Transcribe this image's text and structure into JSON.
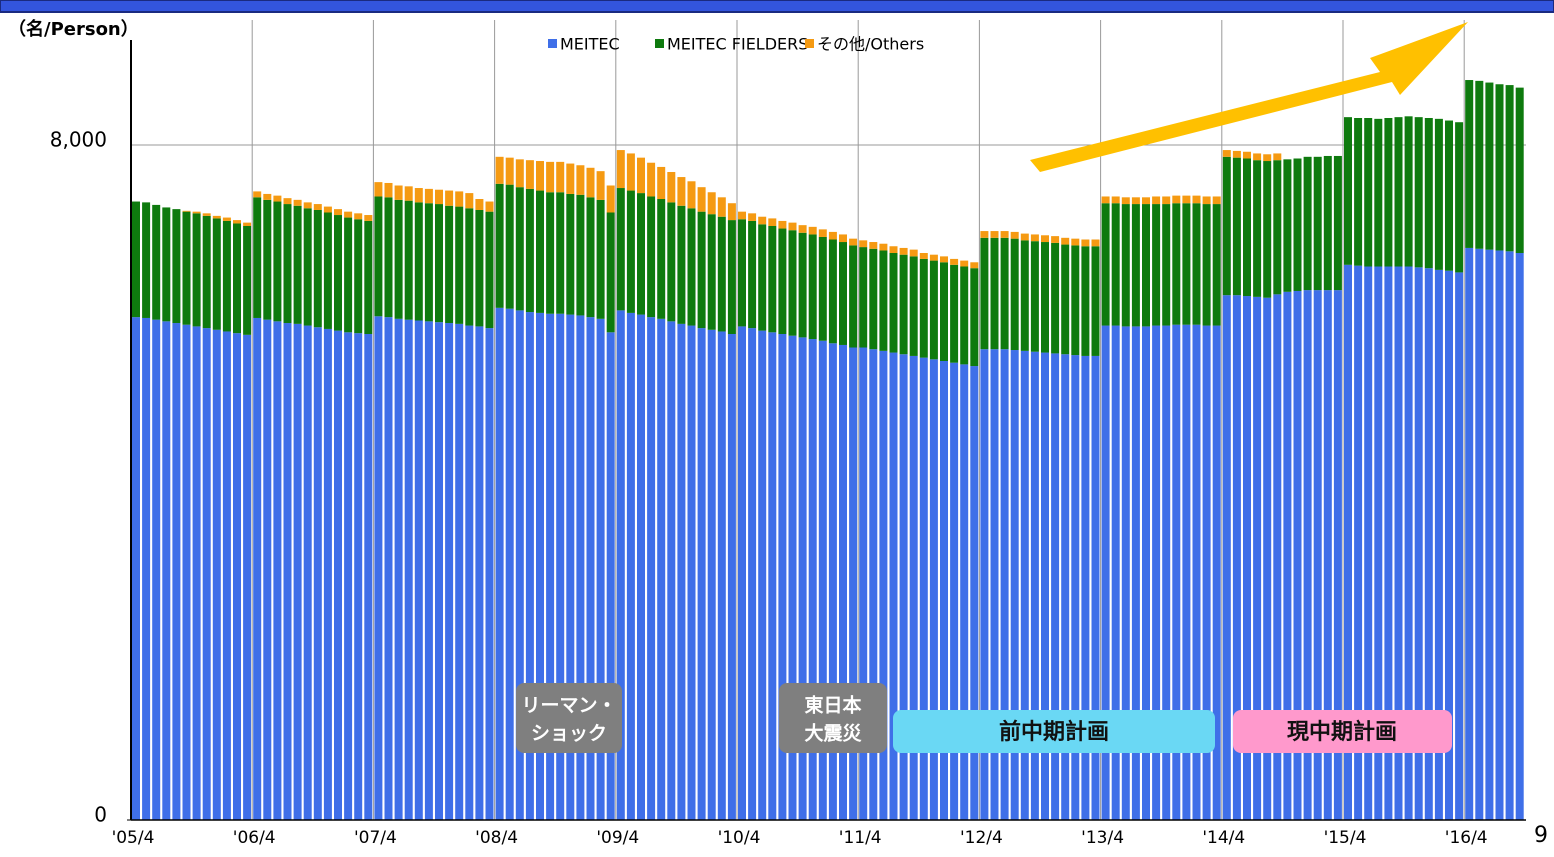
{
  "chart_data": {
    "type": "stacked_bar",
    "y_unit_label": "（名/Person）",
    "page_number": "9",
    "annotations": [
      "リーマン・",
      "ショック",
      "東日本",
      "大震災",
      "前中期計画",
      "現中期計画"
    ],
    "categories": [
      "'05/4",
      null,
      null,
      null,
      null,
      null,
      null,
      null,
      null,
      null,
      null,
      null,
      "'06/4",
      null,
      null,
      null,
      null,
      null,
      null,
      null,
      null,
      null,
      null,
      null,
      "'07/4",
      null,
      null,
      null,
      null,
      null,
      null,
      null,
      null,
      null,
      null,
      null,
      "'08/4",
      null,
      null,
      null,
      null,
      null,
      null,
      null,
      null,
      null,
      null,
      null,
      "'09/4",
      null,
      null,
      null,
      null,
      null,
      null,
      null,
      null,
      null,
      null,
      null,
      "'10/4",
      null,
      null,
      null,
      null,
      null,
      null,
      null,
      null,
      null,
      null,
      null,
      "'11/4",
      null,
      null,
      null,
      null,
      null,
      null,
      null,
      null,
      null,
      null,
      null,
      "'12/4",
      null,
      null,
      null,
      null,
      null,
      null,
      null,
      null,
      null,
      null,
      null,
      "'13/4",
      null,
      null,
      null,
      null,
      null,
      null,
      null,
      null,
      null,
      null,
      null,
      "'14/4",
      null,
      null,
      null,
      null,
      null,
      null,
      null,
      null,
      null,
      null,
      null,
      "'15/4",
      null,
      null,
      null,
      null,
      null,
      null,
      null,
      null,
      null,
      null,
      null,
      "'16/4",
      null,
      null,
      null,
      null,
      null
    ],
    "series": [
      {
        "name": "MEITEC",
        "color": "#3f6fe8",
        "values": [
          5960,
          5950,
          5930,
          5910,
          5890,
          5870,
          5850,
          5830,
          5810,
          5790,
          5770,
          5750,
          5950,
          5930,
          5910,
          5890,
          5880,
          5860,
          5840,
          5820,
          5800,
          5780,
          5770,
          5760,
          5970,
          5960,
          5940,
          5930,
          5920,
          5910,
          5900,
          5890,
          5880,
          5860,
          5850,
          5830,
          6070,
          6060,
          6040,
          6020,
          6010,
          6000,
          6000,
          5990,
          5980,
          5960,
          5940,
          5780,
          6040,
          6010,
          5990,
          5960,
          5940,
          5910,
          5880,
          5860,
          5830,
          5810,
          5790,
          5760,
          5850,
          5830,
          5800,
          5780,
          5760,
          5740,
          5720,
          5700,
          5680,
          5650,
          5630,
          5600,
          5600,
          5580,
          5560,
          5540,
          5520,
          5500,
          5480,
          5460,
          5440,
          5420,
          5400,
          5380,
          5580,
          5580,
          5580,
          5570,
          5560,
          5550,
          5540,
          5530,
          5520,
          5510,
          5500,
          5500,
          5860,
          5860,
          5850,
          5850,
          5850,
          5860,
          5860,
          5870,
          5870,
          5870,
          5860,
          5860,
          6220,
          6220,
          6210,
          6200,
          6190,
          6230,
          6260,
          6270,
          6280,
          6280,
          6280,
          6280,
          6580,
          6570,
          6560,
          6560,
          6560,
          6560,
          6560,
          6550,
          6540,
          6520,
          6510,
          6490,
          6780,
          6770,
          6760,
          6750,
          6740,
          6720
        ]
      },
      {
        "name": "MEITEC FIELDERS",
        "color": "#0e7a0e",
        "values": [
          1370,
          1370,
          1360,
          1350,
          1350,
          1340,
          1340,
          1330,
          1320,
          1310,
          1300,
          1290,
          1430,
          1420,
          1420,
          1410,
          1400,
          1390,
          1390,
          1380,
          1370,
          1360,
          1350,
          1340,
          1420,
          1420,
          1410,
          1410,
          1400,
          1400,
          1400,
          1390,
          1390,
          1390,
          1380,
          1380,
          1470,
          1470,
          1460,
          1460,
          1450,
          1440,
          1440,
          1430,
          1430,
          1420,
          1410,
          1420,
          1450,
          1450,
          1440,
          1430,
          1420,
          1410,
          1400,
          1390,
          1380,
          1370,
          1360,
          1350,
          1270,
          1270,
          1260,
          1260,
          1250,
          1250,
          1240,
          1240,
          1230,
          1230,
          1220,
          1210,
          1190,
          1190,
          1190,
          1180,
          1180,
          1180,
          1170,
          1170,
          1170,
          1160,
          1160,
          1160,
          1320,
          1320,
          1320,
          1320,
          1310,
          1310,
          1310,
          1310,
          1300,
          1300,
          1300,
          1300,
          1450,
          1450,
          1450,
          1450,
          1450,
          1440,
          1440,
          1440,
          1440,
          1440,
          1440,
          1440,
          1640,
          1630,
          1630,
          1620,
          1620,
          1590,
          1570,
          1570,
          1580,
          1580,
          1590,
          1590,
          1750,
          1750,
          1760,
          1750,
          1760,
          1770,
          1780,
          1780,
          1780,
          1790,
          1780,
          1780,
          1990,
          1990,
          1980,
          1970,
          1970,
          1960
        ]
      },
      {
        "name": "その他/Others",
        "color": "#f59a12",
        "values": [
          0,
          0,
          0,
          0,
          0,
          10,
          20,
          30,
          30,
          40,
          40,
          40,
          70,
          70,
          70,
          70,
          70,
          70,
          70,
          70,
          70,
          70,
          70,
          70,
          170,
          170,
          170,
          170,
          170,
          170,
          170,
          180,
          180,
          180,
          130,
          120,
          320,
          320,
          330,
          340,
          350,
          360,
          360,
          360,
          350,
          350,
          340,
          320,
          450,
          440,
          420,
          400,
          380,
          360,
          340,
          320,
          290,
          260,
          230,
          200,
          90,
          90,
          90,
          90,
          90,
          90,
          90,
          90,
          90,
          90,
          90,
          80,
          80,
          80,
          80,
          80,
          80,
          80,
          70,
          70,
          70,
          70,
          70,
          70,
          80,
          80,
          80,
          80,
          80,
          80,
          80,
          80,
          80,
          80,
          80,
          80,
          80,
          80,
          80,
          80,
          80,
          90,
          90,
          90,
          90,
          90,
          90,
          90,
          80,
          80,
          80,
          80,
          80,
          80,
          0,
          0,
          0,
          0,
          0,
          0,
          0,
          0,
          0,
          0,
          0,
          0,
          0,
          0,
          0,
          0,
          0,
          0,
          0,
          0,
          0,
          0,
          0,
          0
        ]
      }
    ],
    "ylim": [
      0,
      9200
    ],
    "yticks": [
      0,
      {
        "value": 8000,
        "label": "8,000"
      }
    ],
    "grid": true
  }
}
